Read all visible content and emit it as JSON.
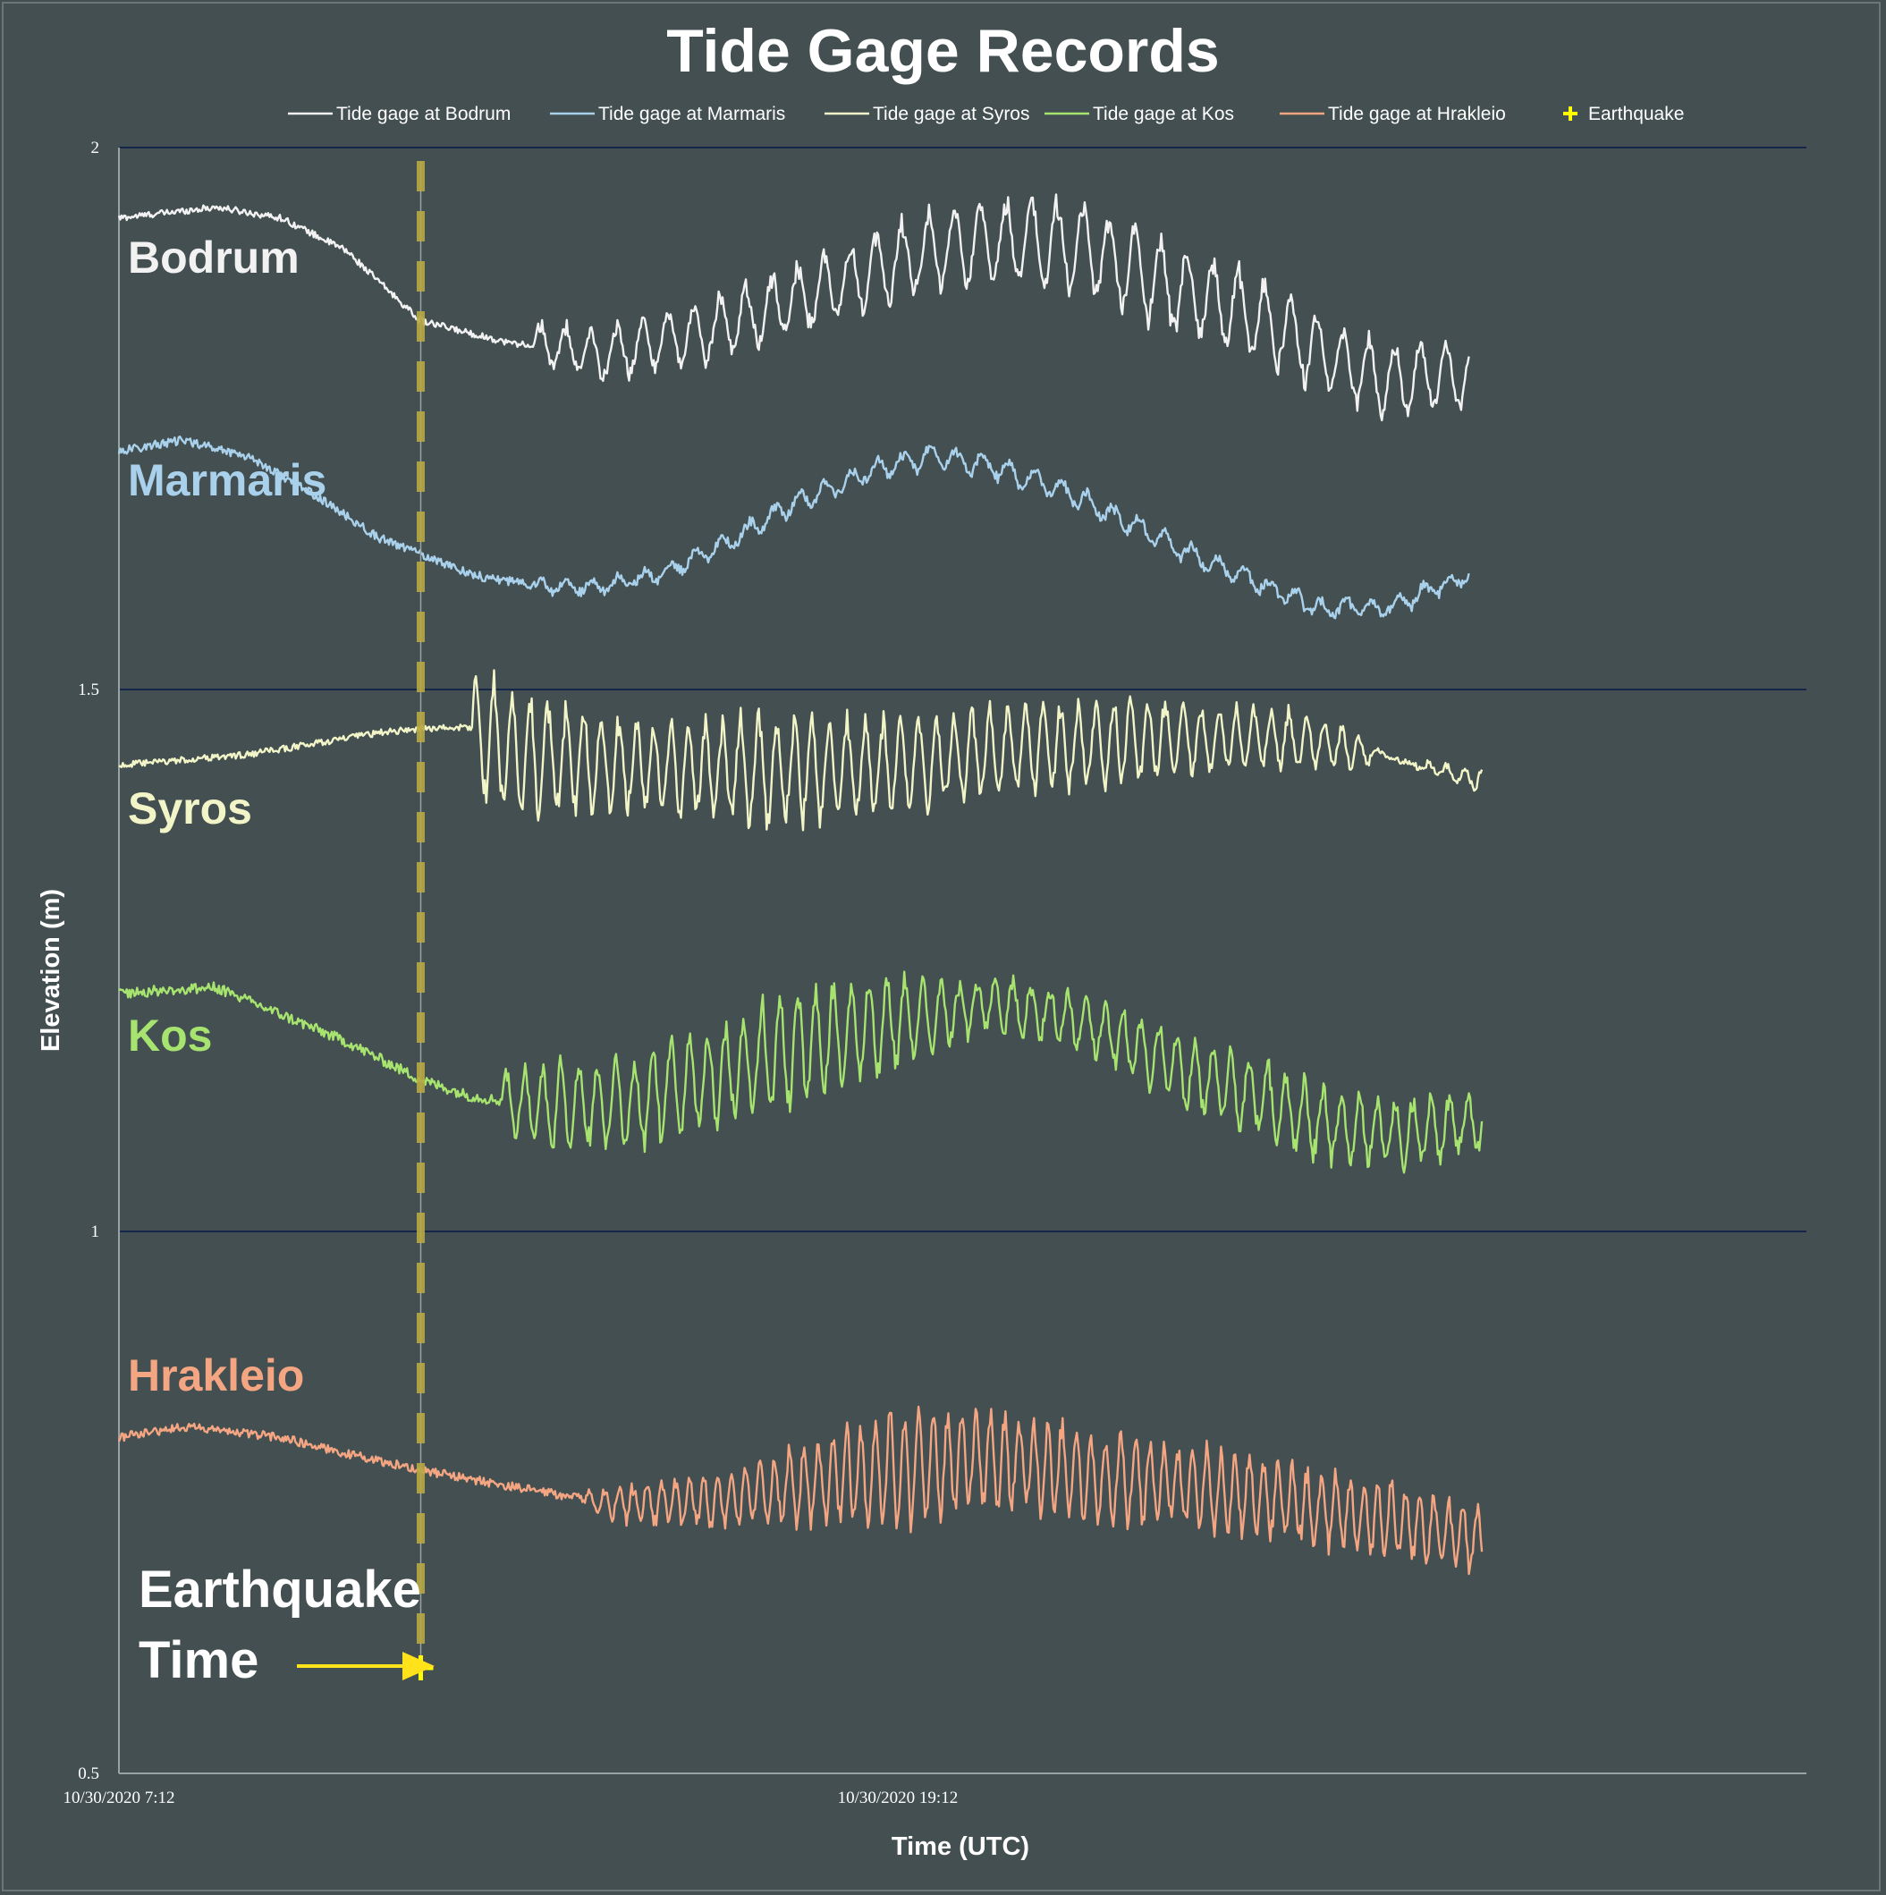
{
  "chart_data": {
    "type": "line",
    "title": "Tide Gage Records",
    "xlabel": "Time (UTC)",
    "ylabel": "Elevation (m)",
    "ylim": [
      0.5,
      2
    ],
    "yticks": [
      0.5,
      1,
      1.5,
      2
    ],
    "xlim_hours": [
      0,
      26
    ],
    "xticks": [
      {
        "hour": 0,
        "label": "10/30/2020 7:12"
      },
      {
        "hour": 12,
        "label": "10/30/2020 19:12"
      }
    ],
    "earthquake": {
      "hour": 4.65,
      "label": "Earthquake",
      "note_line1": "Earthquake",
      "note_line2": "Time"
    },
    "series": [
      {
        "name": "Tide gage at Bodrum",
        "label": "Bodrum",
        "color": "#f2f2f2",
        "end_hour": 20.8,
        "baseline": [
          [
            0,
            1.935
          ],
          [
            1.5,
            1.945
          ],
          [
            2.5,
            1.935
          ],
          [
            3.5,
            1.905
          ],
          [
            4.65,
            1.84
          ],
          [
            6,
            1.82
          ],
          [
            7.5,
            1.81
          ],
          [
            9,
            1.83
          ],
          [
            10.5,
            1.86
          ],
          [
            12,
            1.895
          ],
          [
            13,
            1.91
          ],
          [
            14,
            1.915
          ],
          [
            15,
            1.905
          ],
          [
            16,
            1.875
          ],
          [
            17.5,
            1.845
          ],
          [
            18.5,
            1.81
          ],
          [
            19.5,
            1.785
          ],
          [
            20.8,
            1.79
          ]
        ],
        "osc_start": 6.4,
        "osc_period": 0.4,
        "osc_amp": [
          [
            6.4,
            0.02
          ],
          [
            8,
            0.025
          ],
          [
            10,
            0.03
          ],
          [
            12,
            0.035
          ],
          [
            14,
            0.04
          ],
          [
            16,
            0.04
          ],
          [
            18,
            0.035
          ],
          [
            20.8,
            0.03
          ]
        ],
        "noise": 0.003
      },
      {
        "name": "Tide gage at Marmaris",
        "label": "Marmaris",
        "color": "#a9d1ec",
        "end_hour": 20.8,
        "baseline": [
          [
            0,
            1.72
          ],
          [
            1,
            1.73
          ],
          [
            2,
            1.715
          ],
          [
            3,
            1.68
          ],
          [
            4,
            1.64
          ],
          [
            4.65,
            1.625
          ],
          [
            5.5,
            1.605
          ],
          [
            6.5,
            1.595
          ],
          [
            7.5,
            1.595
          ],
          [
            8.5,
            1.61
          ],
          [
            9.5,
            1.64
          ],
          [
            10.5,
            1.675
          ],
          [
            11.5,
            1.7
          ],
          [
            12.5,
            1.715
          ],
          [
            13.5,
            1.705
          ],
          [
            14.5,
            1.685
          ],
          [
            15.5,
            1.655
          ],
          [
            16.5,
            1.625
          ],
          [
            17.5,
            1.6
          ],
          [
            18.5,
            1.575
          ],
          [
            19.5,
            1.575
          ],
          [
            20.8,
            1.605
          ]
        ],
        "osc_start": 6.4,
        "osc_period": 0.4,
        "osc_amp": [
          [
            6.4,
            0.005
          ],
          [
            10,
            0.008
          ],
          [
            14,
            0.01
          ],
          [
            20.8,
            0.007
          ]
        ],
        "noise": 0.004
      },
      {
        "name": "Tide gage at Syros",
        "label": "Syros",
        "color": "#f2f5c8",
        "end_hour": 21,
        "baseline": [
          [
            0,
            1.43
          ],
          [
            2,
            1.44
          ],
          [
            4,
            1.46
          ],
          [
            4.65,
            1.464
          ],
          [
            5.4,
            1.465
          ],
          [
            6,
            1.44
          ],
          [
            8,
            1.43
          ],
          [
            10,
            1.425
          ],
          [
            12,
            1.43
          ],
          [
            14,
            1.445
          ],
          [
            16,
            1.455
          ],
          [
            18,
            1.455
          ],
          [
            19.5,
            1.44
          ],
          [
            20,
            1.43
          ],
          [
            21,
            1.415
          ]
        ],
        "osc_start": 5.45,
        "osc_period": 0.27,
        "osc_amp": [
          [
            5.45,
            0.06
          ],
          [
            6,
            0.055
          ],
          [
            8,
            0.04
          ],
          [
            10.5,
            0.05
          ],
          [
            12,
            0.04
          ],
          [
            14,
            0.04
          ],
          [
            16,
            0.035
          ],
          [
            18,
            0.025
          ],
          [
            19.2,
            0.015
          ],
          [
            19.5,
            0.0
          ],
          [
            21,
            0.01
          ]
        ],
        "noise": 0.003
      },
      {
        "name": "Tide gage at Kos",
        "label": "Kos",
        "color": "#a6e36f",
        "end_hour": 21,
        "baseline": [
          [
            0,
            1.22
          ],
          [
            1.5,
            1.225
          ],
          [
            2.5,
            1.2
          ],
          [
            3.5,
            1.175
          ],
          [
            4.65,
            1.14
          ],
          [
            5.4,
            1.125
          ],
          [
            6.5,
            1.115
          ],
          [
            8,
            1.12
          ],
          [
            9.5,
            1.15
          ],
          [
            11,
            1.18
          ],
          [
            12.5,
            1.2
          ],
          [
            13.5,
            1.21
          ],
          [
            14.5,
            1.2
          ],
          [
            15.5,
            1.175
          ],
          [
            16.5,
            1.145
          ],
          [
            17.5,
            1.125
          ],
          [
            18.5,
            1.1
          ],
          [
            19.5,
            1.09
          ],
          [
            21,
            1.1
          ]
        ],
        "osc_start": 5.9,
        "osc_period": 0.28,
        "osc_amp": [
          [
            5.9,
            0.03
          ],
          [
            7,
            0.04
          ],
          [
            9,
            0.04
          ],
          [
            10,
            0.055
          ],
          [
            12,
            0.04
          ],
          [
            13,
            0.025
          ],
          [
            15,
            0.025
          ],
          [
            16,
            0.03
          ],
          [
            18,
            0.035
          ],
          [
            21,
            0.025
          ]
        ],
        "noise": 0.005
      },
      {
        "name": "Tide gage at Hrakleio",
        "label": "Hrakleio",
        "color": "#f4a582",
        "end_hour": 21,
        "baseline": [
          [
            0,
            0.81
          ],
          [
            1,
            0.82
          ],
          [
            2.5,
            0.81
          ],
          [
            3.5,
            0.795
          ],
          [
            4.65,
            0.78
          ],
          [
            6,
            0.765
          ],
          [
            7.5,
            0.75
          ],
          [
            9,
            0.75
          ],
          [
            10.5,
            0.765
          ],
          [
            12,
            0.78
          ],
          [
            13,
            0.79
          ],
          [
            14,
            0.785
          ],
          [
            15,
            0.775
          ],
          [
            16.5,
            0.765
          ],
          [
            18,
            0.75
          ],
          [
            19.5,
            0.735
          ],
          [
            21,
            0.715
          ]
        ],
        "osc_start": 7.2,
        "osc_period": 0.22,
        "osc_amp": [
          [
            7.2,
            0.01
          ],
          [
            9,
            0.025
          ],
          [
            10,
            0.03
          ],
          [
            11,
            0.04
          ],
          [
            12,
            0.055
          ],
          [
            13,
            0.045
          ],
          [
            15,
            0.04
          ],
          [
            17,
            0.035
          ],
          [
            19,
            0.035
          ],
          [
            21,
            0.03
          ]
        ],
        "noise": 0.004
      },
      {
        "name": "Earthquake",
        "marker": "+",
        "color": "#ffff00"
      }
    ]
  }
}
